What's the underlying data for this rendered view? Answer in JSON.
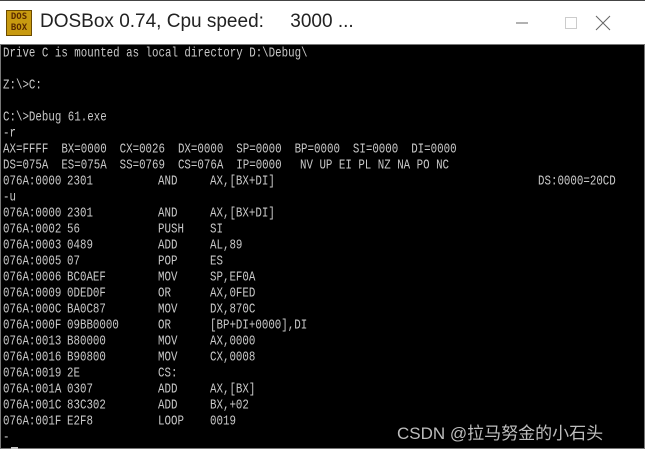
{
  "window": {
    "title": "DOSBox 0.74, Cpu speed:     3000 ...",
    "icon_text": [
      "DOS",
      "BOX"
    ],
    "icon": "dosbox-icon"
  },
  "controls": {
    "minimize": "minimize-icon",
    "maximize": "maximize-icon",
    "close": "close-icon"
  },
  "terminal": {
    "plain_lines": [
      "Drive C is mounted as local directory D:\\Debug\\",
      "",
      "Z:\\>C:",
      "",
      "C:\\>Debug 61.exe",
      "-r",
      "AX=FFFF  BX=0000  CX=0026  DX=0000  SP=0000  BP=0000  SI=0000  DI=0000",
      "DS=075A  ES=075A  SS=0769  CS=076A  IP=0000"
    ],
    "flags": "NV UP EI PL NZ NA PO NC",
    "current": {
      "addr": "076A:0000",
      "bytes": "2301",
      "mnemonic": "AND",
      "operands": "AX,[BX+DI]",
      "memref": "DS:0000=20CD"
    },
    "u_command": "-u",
    "disasm": [
      {
        "addr": "076A:0000",
        "bytes": "2301",
        "mnemonic": "AND",
        "operands": "AX,[BX+DI]"
      },
      {
        "addr": "076A:0002",
        "bytes": "56",
        "mnemonic": "PUSH",
        "operands": "SI"
      },
      {
        "addr": "076A:0003",
        "bytes": "0489",
        "mnemonic": "ADD",
        "operands": "AL,89"
      },
      {
        "addr": "076A:0005",
        "bytes": "07",
        "mnemonic": "POP",
        "operands": "ES"
      },
      {
        "addr": "076A:0006",
        "bytes": "BC0AEF",
        "mnemonic": "MOV",
        "operands": "SP,EF0A"
      },
      {
        "addr": "076A:0009",
        "bytes": "0DED0F",
        "mnemonic": "OR",
        "operands": "AX,0FED"
      },
      {
        "addr": "076A:000C",
        "bytes": "BA0C87",
        "mnemonic": "MOV",
        "operands": "DX,870C"
      },
      {
        "addr": "076A:000F",
        "bytes": "09BB0000",
        "mnemonic": "OR",
        "operands": "[BP+DI+0000],DI"
      },
      {
        "addr": "076A:0013",
        "bytes": "B80000",
        "mnemonic": "MOV",
        "operands": "AX,0000"
      },
      {
        "addr": "076A:0016",
        "bytes": "B90800",
        "mnemonic": "MOV",
        "operands": "CX,0008"
      },
      {
        "addr": "076A:0019",
        "bytes": "2E",
        "mnemonic": "CS:",
        "operands": ""
      },
      {
        "addr": "076A:001A",
        "bytes": "0307",
        "mnemonic": "ADD",
        "operands": "AX,[BX]"
      },
      {
        "addr": "076A:001C",
        "bytes": "83C302",
        "mnemonic": "ADD",
        "operands": "BX,+02"
      },
      {
        "addr": "076A:001F",
        "bytes": "E2F8",
        "mnemonic": "LOOP",
        "operands": "0019"
      }
    ],
    "prompt": "-"
  },
  "watermark": "CSDN @拉马努金的小石头"
}
